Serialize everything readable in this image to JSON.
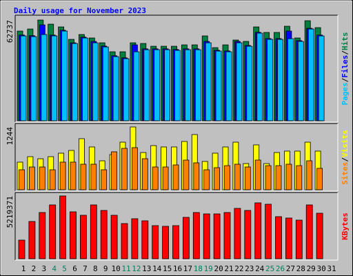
{
  "legend_separator": "/",
  "chart_data": [
    {
      "type": "bar",
      "title": "Daily usage for November 2023",
      "categories": [
        "1",
        "2",
        "3",
        "4",
        "5",
        "6",
        "7",
        "8",
        "9",
        "10",
        "11",
        "12",
        "13",
        "14",
        "15",
        "16",
        "17",
        "18",
        "19",
        "20",
        "21",
        "22",
        "23",
        "24",
        "25",
        "26",
        "27",
        "28",
        "29",
        "30",
        "31"
      ],
      "category_colors": [
        "#000000",
        "#000000",
        "#000000",
        "#00805c",
        "#00805c",
        "#000000",
        "#000000",
        "#000000",
        "#000000",
        "#000000",
        "#00805c",
        "#00805c",
        "#000000",
        "#000000",
        "#000000",
        "#000000",
        "#000000",
        "#00805c",
        "#00805c",
        "#000000",
        "#000000",
        "#000000",
        "#000000",
        "#000000",
        "#00805c",
        "#00805c",
        "#000000",
        "#000000",
        "#000000",
        "#000000",
        "#000000"
      ],
      "ylim": [
        0,
        64900
      ],
      "yticks": [
        62737
      ],
      "series": [
        {
          "name": "Hits",
          "color": "#008040",
          "values": [
            55862,
            57151,
            62737,
            60159,
            58440,
            50705,
            53713,
            51565,
            48557,
            42971,
            42971,
            48557,
            48127,
            46408,
            46408,
            46408,
            47268,
            47268,
            52854,
            45549,
            47268,
            50276,
            49417,
            58440,
            55002,
            55002,
            58870,
            51565,
            62307,
            58010,
            null
          ]
        },
        {
          "name": "Files",
          "color": "#0000ff",
          "values": [
            53400,
            53000,
            59730,
            53400,
            56400,
            48557,
            52100,
            49417,
            46500,
            40500,
            39200,
            47268,
            44800,
            44800,
            44800,
            44400,
            44800,
            44800,
            49417,
            43900,
            43500,
            49417,
            46900,
            55100,
            51200,
            51200,
            55862,
            49900,
            57581,
            53400,
            null
          ]
        },
        {
          "name": "Pages",
          "color": "#00bfff",
          "values": [
            52853,
            52423,
            53713,
            52853,
            55862,
            48127,
            51565,
            48557,
            45978,
            39963,
            38674,
            42971,
            44260,
            44260,
            44260,
            43831,
            44260,
            44260,
            48557,
            43401,
            42971,
            48557,
            46408,
            54573,
            50705,
            50705,
            51135,
            49417,
            57151,
            52853,
            null
          ]
        }
      ]
    },
    {
      "type": "bar",
      "ylim": [
        0,
        1285
      ],
      "yticks": [
        1244
      ],
      "series": [
        {
          "name": "Visits",
          "color": "#ffff00",
          "values": [
            547,
            656,
            615,
            656,
            725,
            779,
            1012,
            848,
            574,
            697,
            943,
            1244,
            738,
            875,
            848,
            848,
            957,
            1094,
            561,
            725,
            848,
            943,
            519,
            889,
            519,
            738,
            766,
            766,
            943,
            766,
            null
          ]
        },
        {
          "name": "Sites",
          "color": "#ff8000",
          "values": [
            396,
            451,
            451,
            396,
            547,
            547,
            506,
            506,
            396,
            752,
            820,
            834,
            615,
            451,
            451,
            492,
            588,
            533,
            396,
            437,
            478,
            506,
            451,
            588,
            478,
            478,
            506,
            478,
            574,
            424,
            null
          ]
        }
      ]
    },
    {
      "type": "bar",
      "ylim": [
        0,
        5390000
      ],
      "yticks": [
        5219371
      ],
      "series": [
        {
          "name": "KBytes",
          "color": "#ff0000",
          "values": [
            1548612,
            3097224,
            3842852,
            4473768,
            5219371,
            3900208,
            3613428,
            4473768,
            4014920,
            3613428,
            2925156,
            3326648,
            3154580,
            2753088,
            2695732,
            2753088,
            3441360,
            3842852,
            3728140,
            3728140,
            3842852,
            4186988,
            4014920,
            4645836,
            4531124,
            3498716,
            3384004,
            3211936,
            4473768,
            3785496,
            null
          ]
        }
      ]
    }
  ]
}
